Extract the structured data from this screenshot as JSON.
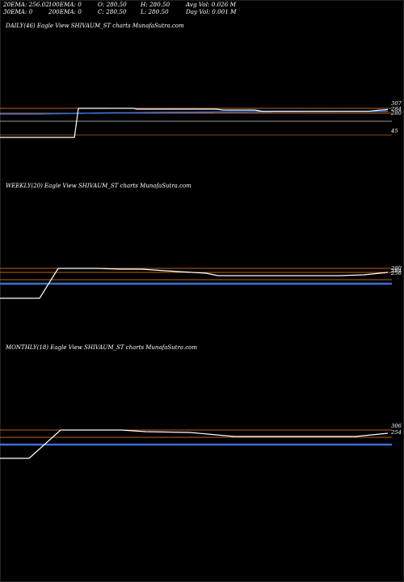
{
  "stats": {
    "ema20": "20EMA: 256.02",
    "ema100": "100EMA: 0",
    "open": "O: 280.50",
    "high": "H: 280.50",
    "avg_vol": "Avg Vol: 0.026  M",
    "ema30": "30EMA: 0",
    "ema200": "200EMA: 0",
    "close": "C: 280.50",
    "low": "L: 280.50",
    "day_vol": "Day Vol: 0.001 M"
  },
  "chart_data": [
    {
      "type": "line",
      "title": "DAILY(46) Eagle  View  SHIVAUM_ST charts MunafaSutra.com",
      "ylim": [
        45,
        307
      ],
      "y_tick_labels": [
        "307",
        "284",
        "280",
        "45"
      ],
      "series": [
        {
          "values": [
            45,
            45,
            45,
            45,
            45,
            45,
            45,
            45,
            45,
            45,
            45,
            45,
            45,
            45,
            45,
            45,
            45,
            45,
            45,
            45,
            307,
            307,
            307,
            307,
            307,
            307,
            307,
            307,
            307,
            307,
            307,
            307,
            307,
            307,
            307,
            300,
            300,
            300,
            300,
            300,
            300,
            300,
            300,
            300,
            300,
            300,
            300,
            300,
            300,
            300,
            300,
            300,
            300,
            300,
            300,
            300,
            296,
            292,
            292,
            292,
            292,
            292,
            292,
            292,
            292,
            292,
            286,
            280,
            280,
            280,
            280,
            280,
            280,
            280,
            280,
            280,
            280,
            280,
            280,
            280,
            280,
            280,
            280,
            280,
            280,
            280,
            280,
            280,
            280,
            280,
            280,
            280,
            280,
            280,
            280,
            284,
            288,
            291,
            294,
            296
          ]
        },
        {
          "values": [
            256,
            256,
            256,
            256,
            256,
            256,
            256,
            256,
            256,
            256,
            257,
            257,
            258,
            258,
            259,
            259,
            260,
            260,
            261,
            261,
            262,
            262,
            263,
            263,
            264,
            264,
            265,
            265,
            266,
            266,
            266,
            267,
            267,
            267,
            268,
            268,
            268,
            269,
            269,
            269,
            270,
            270,
            270,
            271,
            271,
            271,
            271,
            272,
            272,
            272,
            272,
            273,
            273,
            273,
            273,
            274,
            274,
            274,
            274,
            275,
            275,
            275,
            275,
            275,
            276,
            276,
            276,
            276,
            276,
            276,
            277,
            277,
            277,
            277,
            277,
            277,
            277,
            278,
            278,
            278,
            278,
            278,
            278,
            278,
            278,
            278,
            278,
            279,
            279,
            279,
            279,
            279,
            279,
            279,
            279,
            279,
            279,
            280,
            280,
            280
          ]
        }
      ]
    },
    {
      "type": "line",
      "title": "WEEKLY(20) Eagle  View  SHIVAUM_ST charts MunafaSutra.com",
      "y_tick_labels": [
        "280",
        "284",
        "256"
      ]
    },
    {
      "type": "line",
      "title": "MONTHLY(18) Eagle  View  SHIVAUM_ST charts MunafaSutra.com",
      "y_tick_labels": [
        "306",
        "254"
      ]
    }
  ],
  "colors": {
    "background": "#000000",
    "price_line": "#ffffff",
    "ema_line": "#3a6fd8",
    "orange_line": "#b8621e",
    "grey_line": "#9a9a9a"
  }
}
